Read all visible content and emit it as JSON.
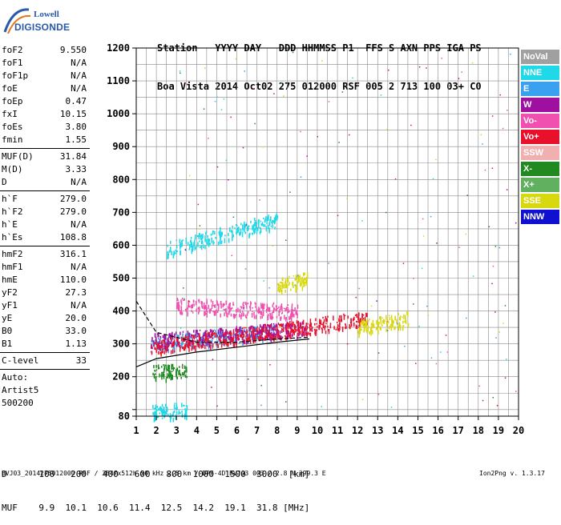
{
  "logo": {
    "line1": "Lowell",
    "line2": "DIGISONDE"
  },
  "header": {
    "labels": [
      "Station",
      "YYYY",
      "DAY",
      "DDD",
      "HHMMSS",
      "P1",
      "FFS",
      "S",
      "AXN",
      "PPS",
      "IGA",
      "PS"
    ],
    "values": [
      "Boa Vista",
      "2014",
      "Oct02",
      "275",
      "012000",
      "RSF",
      "005",
      "2",
      "713",
      "100",
      "03+",
      "C0"
    ]
  },
  "params_group1": [
    {
      "name": "foF2",
      "value": "9.550"
    },
    {
      "name": "foF1",
      "value": "N/A"
    },
    {
      "name": "foF1p",
      "value": "N/A"
    },
    {
      "name": "foE",
      "value": "N/A"
    },
    {
      "name": "foEp",
      "value": "0.47"
    },
    {
      "name": "fxI",
      "value": "10.15"
    },
    {
      "name": "foEs",
      "value": "3.80"
    },
    {
      "name": "fmin",
      "value": "1.55"
    }
  ],
  "params_group2": [
    {
      "name": "MUF(D)",
      "value": "31.84"
    },
    {
      "name": "M(D)",
      "value": "3.33"
    },
    {
      "name": "D",
      "value": "N/A"
    }
  ],
  "params_group3": [
    {
      "name": "h`F",
      "value": "279.0"
    },
    {
      "name": "h`F2",
      "value": "279.0"
    },
    {
      "name": "h`E",
      "value": "N/A"
    },
    {
      "name": "h`Es",
      "value": "108.8"
    }
  ],
  "params_group4": [
    {
      "name": "hmF2",
      "value": "316.1"
    },
    {
      "name": "hmF1",
      "value": "N/A"
    },
    {
      "name": "hmE",
      "value": "110.0"
    },
    {
      "name": "yF2",
      "value": "27.3"
    },
    {
      "name": "yF1",
      "value": "N/A"
    },
    {
      "name": "yE",
      "value": "20.0"
    },
    {
      "name": "B0",
      "value": "33.0"
    },
    {
      "name": "B1",
      "value": "1.13"
    }
  ],
  "clevel": {
    "name": "C-level",
    "value": "33"
  },
  "auto": {
    "line1": "Auto:",
    "line2": "Artist5",
    "line3": "500200"
  },
  "legend": [
    {
      "label": "NoVal",
      "color": "#a0a0a0"
    },
    {
      "label": "NNE",
      "color": "#1fd8e8"
    },
    {
      "label": "E",
      "color": "#3aa0f0"
    },
    {
      "label": "W",
      "color": "#a010a0"
    },
    {
      "label": "Vo-",
      "color": "#f050b0"
    },
    {
      "label": "Vo+",
      "color": "#e8102a"
    },
    {
      "label": "SSW",
      "color": "#f0b0b0"
    },
    {
      "label": "X-",
      "color": "#208a20"
    },
    {
      "label": "X+",
      "color": "#60b060"
    },
    {
      "label": "SSE",
      "color": "#d8d810"
    },
    {
      "label": "NNW",
      "color": "#1010d0"
    }
  ],
  "footer": {
    "d_label": "D",
    "d_values": [
      "100",
      "200",
      "400",
      "600",
      "800",
      "1000",
      "1500",
      "3000",
      "[km]"
    ],
    "muf_label": "MUF",
    "muf_values": [
      "9.9",
      "10.1",
      "10.6",
      "11.4",
      "12.5",
      "14.2",
      "19.1",
      "31.8",
      "[MHz]"
    ],
    "file_line": "BVJ03_2014275012000.RSF / 384fx512h 50 kHz 2.5 km / DPS-4D BVJ03 003 / 2.8 N 299.3 E",
    "version": "Ion2Png v. 1.3.17"
  },
  "chart_data": {
    "type": "scatter",
    "title": "",
    "xlabel": "",
    "ylabel": "",
    "xlim": [
      1,
      20
    ],
    "ylim": [
      80,
      1200
    ],
    "x_ticks": [
      1,
      2,
      3,
      4,
      5,
      6,
      7,
      8,
      9,
      10,
      11,
      12,
      13,
      14,
      15,
      16,
      17,
      18,
      19,
      20
    ],
    "y_ticks": [
      80,
      100,
      200,
      300,
      400,
      500,
      600,
      700,
      800,
      900,
      1000,
      1100,
      1200
    ],
    "y_labels": [
      80,
      200,
      300,
      400,
      500,
      600,
      700,
      800,
      900,
      1000,
      1100,
      1200
    ],
    "grid": true,
    "echo_traces": [
      {
        "series": "NNE",
        "x": [
          2.5,
          8.0
        ],
        "y": [
          590,
          680
        ]
      },
      {
        "series": "E",
        "x": [
          1.7,
          8.0
        ],
        "y": [
          300,
          340
        ]
      },
      {
        "series": "W",
        "x": [
          1.7,
          9.5
        ],
        "y": [
          310,
          350
        ]
      },
      {
        "series": "Vo+",
        "x": [
          1.7,
          12.5
        ],
        "y": [
          290,
          380
        ]
      },
      {
        "series": "Vo-",
        "x": [
          3.0,
          9.0
        ],
        "y": [
          420,
          400
        ]
      },
      {
        "series": "SSE",
        "x": [
          12.0,
          14.5
        ],
        "y": [
          350,
          380
        ]
      },
      {
        "series": "SSE",
        "x": [
          8.0,
          9.5
        ],
        "y": [
          480,
          500
        ]
      },
      {
        "series": "NNE",
        "x": [
          1.8,
          3.5
        ],
        "y": [
          95,
          100
        ]
      },
      {
        "series": "X-",
        "x": [
          1.8,
          3.5
        ],
        "y": [
          215,
          220
        ]
      }
    ],
    "profile_curves": [
      {
        "name": "virtual",
        "x": [
          1.0,
          2.0,
          4.0,
          6.0,
          8.0,
          9.6
        ],
        "y": [
          430,
          335,
          305,
          305,
          315,
          320
        ]
      },
      {
        "name": "true",
        "x": [
          1.0,
          2.0,
          4.0,
          6.0,
          8.0,
          9.6
        ],
        "y": [
          230,
          255,
          275,
          290,
          305,
          315
        ]
      }
    ]
  }
}
